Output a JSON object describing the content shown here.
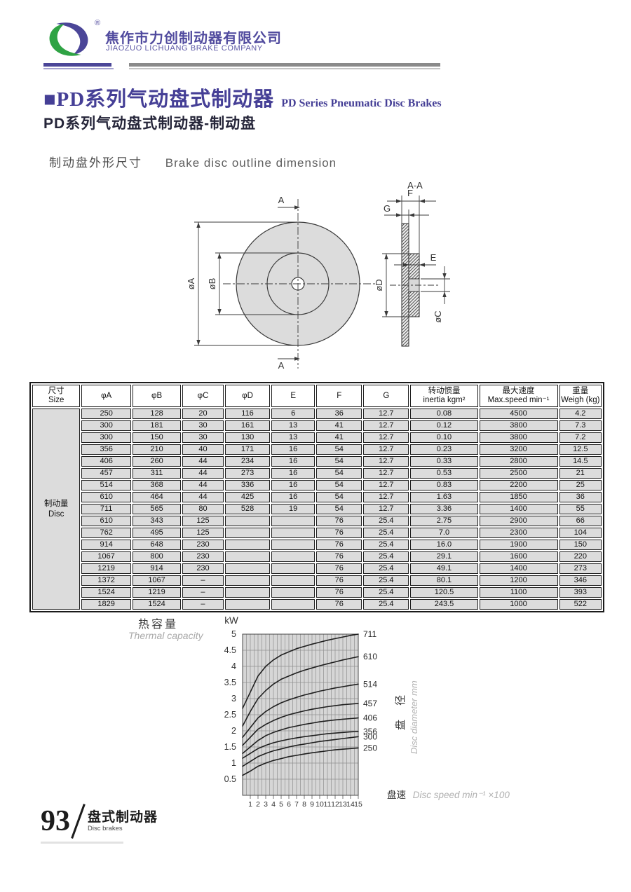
{
  "header": {
    "company_cn": "焦作市力创制动器有限公司",
    "company_en": "JIAOZUO LICHUANG BRAKE COMPANY",
    "registered_mark": "®",
    "brand_purple": "#4b4698",
    "brand_green": "#2fa344"
  },
  "title": {
    "main_cn": "■PD系列气动盘式制动器",
    "main_en": "PD Series Pneumatic Disc Brakes",
    "subtitle": "PD系列气动盘式制动器-制动盘",
    "section_cn": "制动盘外形尺寸",
    "section_en": "Brake disc outline dimension"
  },
  "drawing": {
    "labels": {
      "section_view": "A-A",
      "section_cut": "A",
      "phi_a": "øA",
      "phi_b": "øB",
      "phi_c": "øC",
      "phi_d": "øD",
      "dim_e": "E",
      "dim_f": "F",
      "dim_g": "G"
    }
  },
  "table": {
    "columns": [
      {
        "cn": "尺寸",
        "en": "Size"
      },
      {
        "label": "φA"
      },
      {
        "label": "φB"
      },
      {
        "label": "φC"
      },
      {
        "label": "φD"
      },
      {
        "label": "E"
      },
      {
        "label": "F"
      },
      {
        "label": "G"
      },
      {
        "cn": "转动惯量",
        "en": "inertia kgm²"
      },
      {
        "cn": "最大速度",
        "en": "Max.speed min⁻¹"
      },
      {
        "cn": "重量",
        "en": "Weigh (kg)"
      }
    ],
    "row_group": {
      "cn": "制动量",
      "en": "Disc"
    },
    "rows": [
      [
        "250",
        "128",
        "20",
        "116",
        "6",
        "36",
        "12.7",
        "0.08",
        "4500",
        "4.2"
      ],
      [
        "300",
        "181",
        "30",
        "161",
        "13",
        "41",
        "12.7",
        "0.12",
        "3800",
        "7.3"
      ],
      [
        "300",
        "150",
        "30",
        "130",
        "13",
        "41",
        "12.7",
        "0.10",
        "3800",
        "7.2"
      ],
      [
        "356",
        "210",
        "40",
        "171",
        "16",
        "54",
        "12.7",
        "0.23",
        "3200",
        "12.5"
      ],
      [
        "406",
        "260",
        "44",
        "234",
        "16",
        "54",
        "12.7",
        "0.33",
        "2800",
        "14.5"
      ],
      [
        "457",
        "311",
        "44",
        "273",
        "16",
        "54",
        "12.7",
        "0.53",
        "2500",
        "21"
      ],
      [
        "514",
        "368",
        "44",
        "336",
        "16",
        "54",
        "12.7",
        "0.83",
        "2200",
        "25"
      ],
      [
        "610",
        "464",
        "44",
        "425",
        "16",
        "54",
        "12.7",
        "1.63",
        "1850",
        "36"
      ],
      [
        "711",
        "565",
        "80",
        "528",
        "19",
        "54",
        "12.7",
        "3.36",
        "1400",
        "55"
      ],
      [
        "610",
        "343",
        "125",
        "",
        "",
        "76",
        "25.4",
        "2.75",
        "2900",
        "66"
      ],
      [
        "762",
        "495",
        "125",
        "",
        "",
        "76",
        "25.4",
        "7.0",
        "2300",
        "104"
      ],
      [
        "914",
        "648",
        "230",
        "",
        "",
        "76",
        "25.4",
        "16.0",
        "1900",
        "150"
      ],
      [
        "1067",
        "800",
        "230",
        "",
        "",
        "76",
        "25.4",
        "29.1",
        "1600",
        "220"
      ],
      [
        "1219",
        "914",
        "230",
        "",
        "",
        "76",
        "25.4",
        "49.1",
        "1400",
        "273"
      ],
      [
        "1372",
        "1067",
        "–",
        "",
        "",
        "76",
        "25.4",
        "80.1",
        "1200",
        "346"
      ],
      [
        "1524",
        "1219",
        "–",
        "",
        "",
        "76",
        "25.4",
        "120.5",
        "1100",
        "393"
      ],
      [
        "1829",
        "1524",
        "–",
        "",
        "",
        "76",
        "25.4",
        "243.5",
        "1000",
        "522"
      ]
    ]
  },
  "chart": {
    "unit_label": "kW",
    "title_cn": "热容量",
    "title_en": "Thermal capacity",
    "x_label_cn": "盘速",
    "x_label_en": "Disc speed min⁻¹ ×100",
    "right_label_cn": "盘 径",
    "right_label_en": "Disc diameter mm",
    "y_ticks": [
      "0.5",
      "1",
      "1.5",
      "2",
      "2.5",
      "3",
      "3.5",
      "4",
      "4.5",
      "5"
    ],
    "x_ticks": [
      "1",
      "2",
      "3",
      "4",
      "5",
      "6",
      "7",
      "8",
      "9",
      "10",
      "11",
      "12",
      "13",
      "14",
      "15"
    ]
  },
  "chart_data": {
    "type": "line",
    "title": "热容量 Thermal capacity",
    "xlabel": "盘速 Disc speed min⁻¹ ×100",
    "ylabel": "kW",
    "right_axis_label": "盘径 Disc diameter mm (curve labels = disc diameter)",
    "xlim": [
      0,
      15
    ],
    "ylim": [
      0,
      5
    ],
    "grid": true,
    "grid_step_x": 0.5,
    "grid_step_y": 0.5,
    "legend_position": "right-end-labels",
    "x": [
      0,
      1,
      2,
      3,
      4,
      5,
      6,
      7,
      8,
      9,
      10,
      11,
      12,
      13,
      14,
      15
    ],
    "series": [
      {
        "name": "711",
        "values": [
          2.7,
          3.2,
          3.7,
          4.0,
          4.2,
          4.35,
          4.45,
          4.55,
          4.62,
          4.69,
          4.75,
          4.81,
          4.86,
          4.91,
          4.96,
          5.0
        ]
      },
      {
        "name": "610",
        "values": [
          2.15,
          2.6,
          3.0,
          3.25,
          3.45,
          3.6,
          3.7,
          3.8,
          3.88,
          3.95,
          4.02,
          4.08,
          4.14,
          4.2,
          4.25,
          4.3
        ]
      },
      {
        "name": "514",
        "values": [
          1.8,
          2.1,
          2.4,
          2.6,
          2.75,
          2.87,
          2.96,
          3.04,
          3.11,
          3.17,
          3.23,
          3.28,
          3.33,
          3.37,
          3.41,
          3.45
        ]
      },
      {
        "name": "457",
        "values": [
          1.55,
          1.8,
          2.05,
          2.2,
          2.32,
          2.42,
          2.5,
          2.56,
          2.62,
          2.67,
          2.71,
          2.75,
          2.78,
          2.81,
          2.83,
          2.85
        ]
      },
      {
        "name": "406",
        "values": [
          1.3,
          1.5,
          1.7,
          1.85,
          1.95,
          2.03,
          2.1,
          2.15,
          2.2,
          2.24,
          2.28,
          2.31,
          2.34,
          2.36,
          2.38,
          2.4
        ]
      },
      {
        "name": "356",
        "values": [
          1.15,
          1.3,
          1.45,
          1.55,
          1.63,
          1.69,
          1.74,
          1.78,
          1.82,
          1.85,
          1.88,
          1.91,
          1.93,
          1.95,
          1.97,
          1.98
        ]
      },
      {
        "name": "300",
        "values": [
          0.9,
          1.05,
          1.2,
          1.3,
          1.38,
          1.44,
          1.5,
          1.55,
          1.59,
          1.63,
          1.67,
          1.7,
          1.73,
          1.76,
          1.79,
          1.82
        ]
      },
      {
        "name": "250",
        "values": [
          0.62,
          0.75,
          0.9,
          1.0,
          1.08,
          1.14,
          1.2,
          1.24,
          1.28,
          1.32,
          1.35,
          1.38,
          1.41,
          1.43,
          1.45,
          1.47
        ]
      }
    ]
  },
  "footer": {
    "page_number": "93",
    "title_cn": "盘式制动器",
    "title_en": "Disc brakes"
  }
}
